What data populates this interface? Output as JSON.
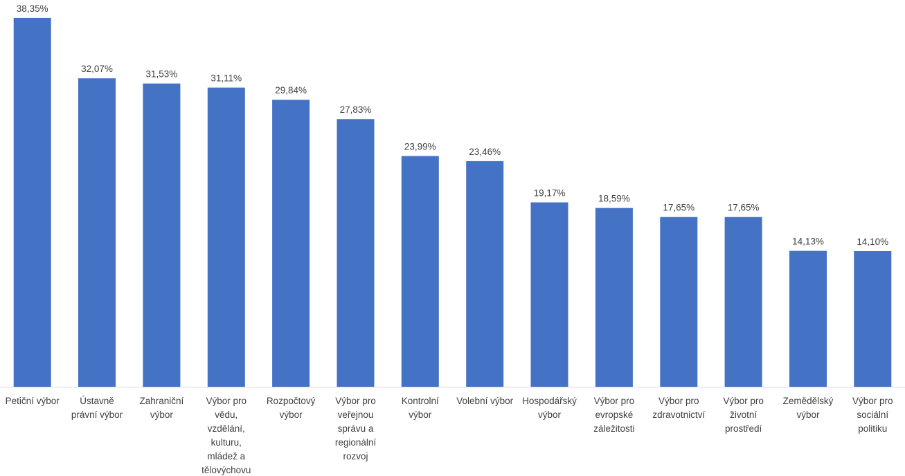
{
  "chart_data": {
    "type": "bar",
    "categories": [
      [
        "Petiční výbor"
      ],
      [
        "Ústavně",
        "právní výbor"
      ],
      [
        "Zahraniční",
        "výbor"
      ],
      [
        "Výbor pro",
        "vědu,",
        "vzdělání,",
        "kulturu,",
        "mládež a",
        "tělovýchovu"
      ],
      [
        "Rozpočtový",
        "výbor"
      ],
      [
        "Výbor pro",
        "veřejnou",
        "správu a",
        "regionální",
        "rozvoj"
      ],
      [
        "Kontrolní",
        "výbor"
      ],
      [
        "Volební výbor"
      ],
      [
        "Hospodářský",
        "výbor"
      ],
      [
        "Výbor pro",
        "evropské",
        "záležitosti"
      ],
      [
        "Výbor pro",
        "zdravotnictví"
      ],
      [
        "Výbor pro",
        "životní",
        "prostředí"
      ],
      [
        "Zemědělský",
        "výbor"
      ],
      [
        "Výbor pro",
        "sociální",
        "politiku"
      ]
    ],
    "values": [
      38.35,
      32.07,
      31.53,
      31.11,
      29.84,
      27.83,
      23.99,
      23.46,
      19.17,
      18.59,
      17.65,
      17.65,
      14.13,
      14.1
    ],
    "value_labels": [
      "38,35%",
      "32,07%",
      "31,53%",
      "31,11%",
      "29,84%",
      "27,83%",
      "23,99%",
      "23,46%",
      "19,17%",
      "18,59%",
      "17,65%",
      "17,65%",
      "14,13%",
      "14,10%"
    ],
    "ylim": [
      0,
      40
    ],
    "grid": false,
    "bar_color": "#4472C4",
    "axis_color": "#D9D9D9",
    "text_color": "#404040"
  }
}
